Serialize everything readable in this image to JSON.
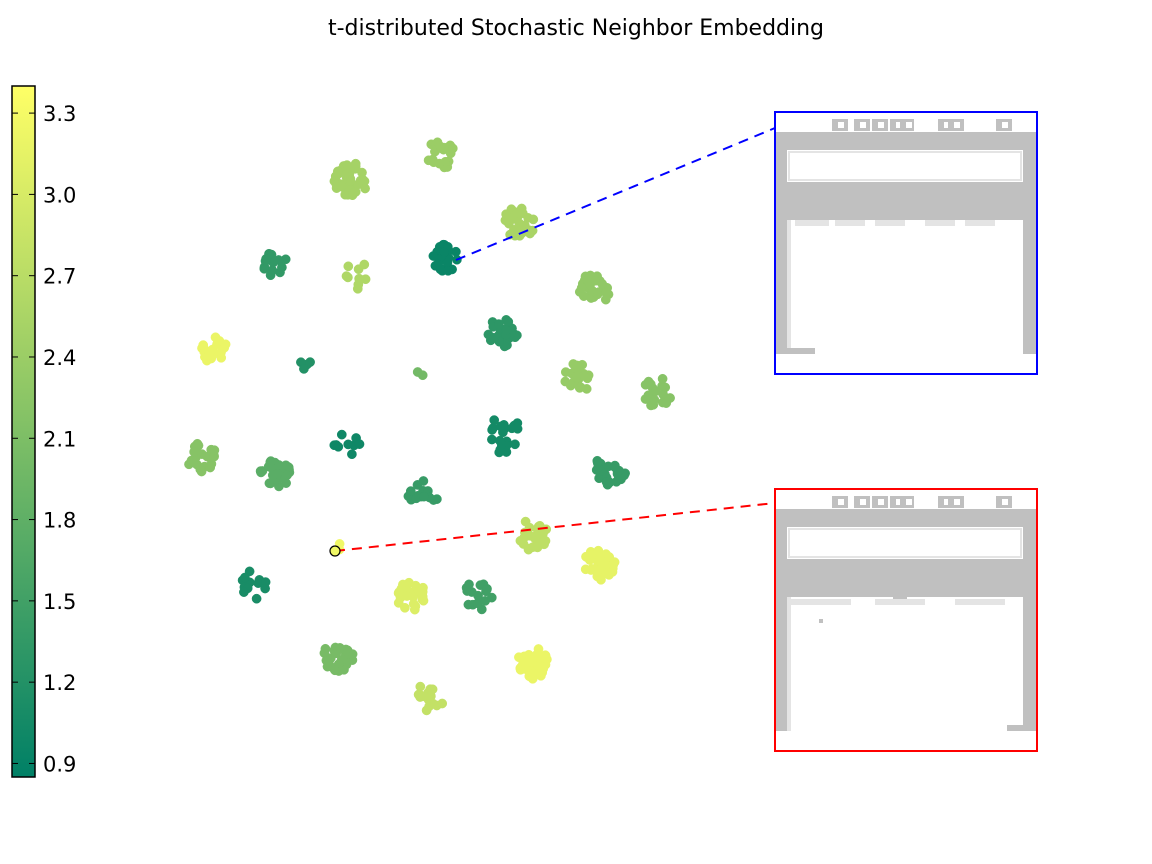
{
  "chart_data": {
    "type": "scatter",
    "title": "t-distributed Stochastic Neighbor Embedding",
    "xlabel": "",
    "ylabel": "",
    "axes_visible": false,
    "colormap": "summer",
    "colorbar": {
      "min": 0.85,
      "max": 3.4,
      "ticks": [
        "0.9",
        "1.2",
        "1.5",
        "1.8",
        "2.1",
        "2.4",
        "2.7",
        "3.0",
        "3.3"
      ],
      "low_color": "#008066",
      "high_color": "#ffff66"
    },
    "clusters": [
      {
        "center": [
          441,
          155
        ],
        "count": 22,
        "spread": 17,
        "value": 2.4
      },
      {
        "center": [
          351,
          180
        ],
        "count": 40,
        "spread": 20,
        "value": 2.5
      },
      {
        "center": [
          520,
          222
        ],
        "count": 30,
        "spread": 19,
        "value": 2.55
      },
      {
        "center": [
          273,
          265
        ],
        "count": 15,
        "spread": 17,
        "value": 1.35
      },
      {
        "center": [
          446,
          258
        ],
        "count": 22,
        "spread": 16,
        "value": 0.95
      },
      {
        "center": [
          358,
          276
        ],
        "count": 10,
        "spread": 17,
        "value": 2.6
      },
      {
        "center": [
          593,
          290
        ],
        "count": 30,
        "spread": 19,
        "value": 2.3
      },
      {
        "center": [
          503,
          333
        ],
        "count": 30,
        "spread": 18,
        "value": 1.3
      },
      {
        "center": [
          215,
          350
        ],
        "count": 20,
        "spread": 16,
        "value": 3.2
      },
      {
        "center": [
          305,
          365
        ],
        "count": 4,
        "spread": 7,
        "value": 1.2
      },
      {
        "center": [
          418,
          370
        ],
        "count": 2,
        "spread": 9,
        "value": 2.0
      },
      {
        "center": [
          578,
          378
        ],
        "count": 26,
        "spread": 18,
        "value": 2.35
      },
      {
        "center": [
          658,
          392
        ],
        "count": 18,
        "spread": 18,
        "value": 2.2
      },
      {
        "center": [
          503,
          435
        ],
        "count": 20,
        "spread": 22,
        "value": 1.05
      },
      {
        "center": [
          347,
          445
        ],
        "count": 9,
        "spread": 15,
        "value": 1.0
      },
      {
        "center": [
          202,
          458
        ],
        "count": 22,
        "spread": 18,
        "value": 2.2
      },
      {
        "center": [
          276,
          475
        ],
        "count": 32,
        "spread": 19,
        "value": 1.75
      },
      {
        "center": [
          610,
          470
        ],
        "count": 26,
        "spread": 19,
        "value": 1.4
      },
      {
        "center": [
          424,
          497
        ],
        "count": 14,
        "spread": 20,
        "value": 1.4
      },
      {
        "center": [
          533,
          535
        ],
        "count": 30,
        "spread": 19,
        "value": 2.75
      },
      {
        "center": [
          339,
          548
        ],
        "count": 2,
        "spread": 5,
        "value": 3.25
      },
      {
        "center": [
          599,
          565
        ],
        "count": 30,
        "spread": 19,
        "value": 3.15
      },
      {
        "center": [
          253,
          585
        ],
        "count": 14,
        "spread": 17,
        "value": 1.1
      },
      {
        "center": [
          411,
          595
        ],
        "count": 30,
        "spread": 18,
        "value": 3.05
      },
      {
        "center": [
          478,
          595
        ],
        "count": 16,
        "spread": 18,
        "value": 1.5
      },
      {
        "center": [
          338,
          657
        ],
        "count": 30,
        "spread": 18,
        "value": 2.05
      },
      {
        "center": [
          533,
          663
        ],
        "count": 40,
        "spread": 19,
        "value": 3.2
      },
      {
        "center": [
          430,
          697
        ],
        "count": 16,
        "spread": 17,
        "value": 2.8
      }
    ],
    "annotations": [
      {
        "from_cluster": 4,
        "inset": "top",
        "line_color": "#0000ff",
        "line_style": "dashed"
      },
      {
        "from_cluster": 20,
        "inset": "bottom",
        "line_color": "#ff0000",
        "line_style": "dashed",
        "highlighted_point": true
      }
    ],
    "insets": [
      {
        "id": "top",
        "border_color": "#0000ff",
        "content": "game-screen-frame"
      },
      {
        "id": "bottom",
        "border_color": "#ff0000",
        "content": "game-screen-frame"
      }
    ]
  }
}
